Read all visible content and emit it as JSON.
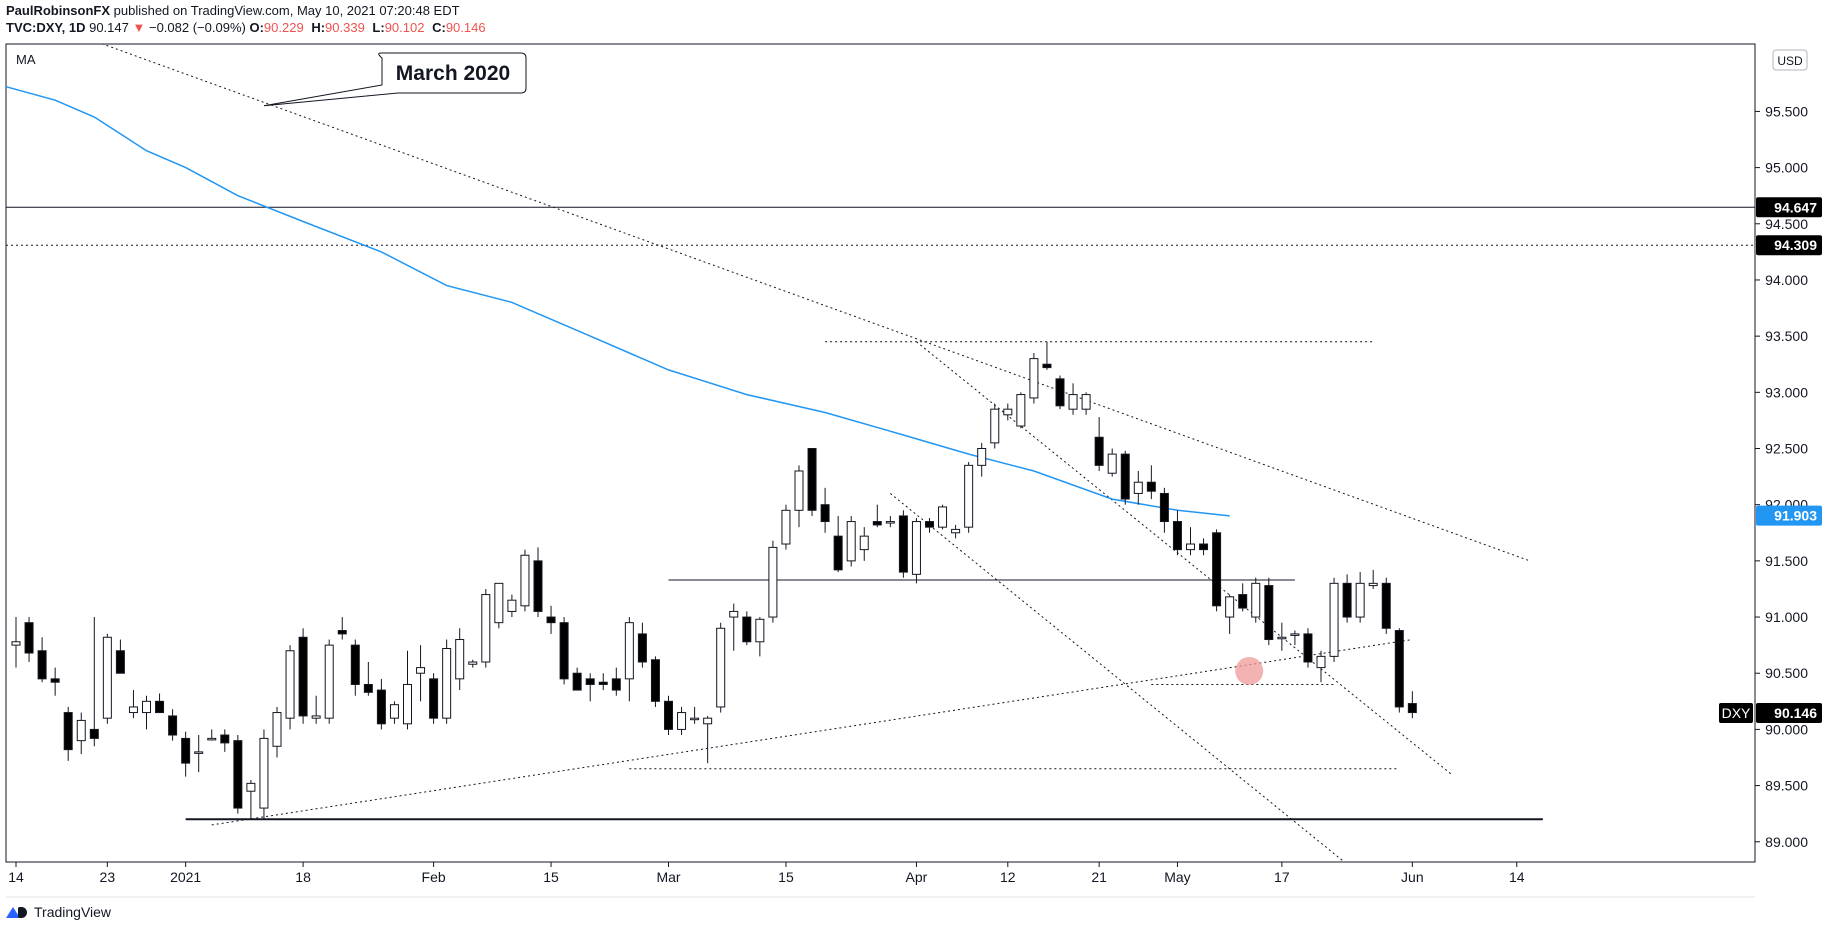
{
  "header": {
    "author": "PaulRobinsonFX",
    "published": "published on TradingView.com, May 10, 2021 07:20:48 EDT",
    "symbol": "TVC:DXY, 1D",
    "last": "90.147",
    "change": "−0.082 (−0.09%)",
    "ohlc": [
      {
        "k": "O:",
        "v": "90.229"
      },
      {
        "k": "H:",
        "v": "90.339"
      },
      {
        "k": "L:",
        "v": "90.102"
      },
      {
        "k": "C:",
        "v": "90.146"
      }
    ]
  },
  "indicator_label": "MA",
  "currency_label": "USD",
  "annotation": "March 2020",
  "footer_brand": "TradingView",
  "colors": {
    "up": "#ffffff",
    "down": "#000000",
    "ma": "#2196f3",
    "circle": "#ef9a9a"
  },
  "chart_data": {
    "type": "candlestick",
    "symbol": "DXY",
    "ylim": [
      88.82,
      96.1
    ],
    "y_ticks": [
      89.0,
      89.5,
      90.0,
      90.5,
      91.0,
      91.5,
      92.0,
      92.5,
      93.0,
      93.5,
      94.0,
      94.5,
      95.0,
      95.5
    ],
    "y_tick_labels": [
      "89.000",
      "89.500",
      "90.000",
      "90.500",
      "91.000",
      "91.500",
      "92.000",
      "92.500",
      "93.000",
      "93.500",
      "94.000",
      "94.500",
      "95.000",
      "95.500"
    ],
    "x_labels": [
      {
        "d": 0,
        "label": "14"
      },
      {
        "d": 7,
        "label": "23"
      },
      {
        "d": 13,
        "label": "2021"
      },
      {
        "d": 22,
        "label": "18"
      },
      {
        "d": 32,
        "label": "Feb"
      },
      {
        "d": 41,
        "label": "15"
      },
      {
        "d": 50,
        "label": "Mar"
      },
      {
        "d": 59,
        "label": "15"
      },
      {
        "d": 69,
        "label": "Apr"
      },
      {
        "d": 76,
        "label": "12"
      },
      {
        "d": 83,
        "label": "21"
      },
      {
        "d": 89,
        "label": "May"
      },
      {
        "d": 97,
        "label": "17"
      },
      {
        "d": 107,
        "label": "Jun"
      },
      {
        "d": 115,
        "label": "14"
      }
    ],
    "candles": [
      {
        "o": 90.75,
        "h": 91.0,
        "l": 90.55,
        "c": 90.78
      },
      {
        "o": 90.95,
        "h": 91.0,
        "l": 90.6,
        "c": 90.68
      },
      {
        "o": 90.7,
        "h": 90.82,
        "l": 90.42,
        "c": 90.45
      },
      {
        "o": 90.45,
        "h": 90.55,
        "l": 90.3,
        "c": 90.42
      },
      {
        "o": 90.15,
        "h": 90.2,
        "l": 89.72,
        "c": 89.82
      },
      {
        "o": 89.9,
        "h": 90.15,
        "l": 89.78,
        "c": 90.08
      },
      {
        "o": 90.0,
        "h": 91.0,
        "l": 89.85,
        "c": 89.92
      },
      {
        "o": 90.1,
        "h": 90.85,
        "l": 90.05,
        "c": 90.82
      },
      {
        "o": 90.7,
        "h": 90.8,
        "l": 90.5,
        "c": 90.5
      },
      {
        "o": 90.15,
        "h": 90.35,
        "l": 90.1,
        "c": 90.2
      },
      {
        "o": 90.15,
        "h": 90.3,
        "l": 90.0,
        "c": 90.25
      },
      {
        "o": 90.25,
        "h": 90.32,
        "l": 90.15,
        "c": 90.15
      },
      {
        "o": 90.12,
        "h": 90.18,
        "l": 89.9,
        "c": 89.95
      },
      {
        "o": 89.92,
        "h": 89.98,
        "l": 89.58,
        "c": 89.7
      },
      {
        "o": 89.8,
        "h": 89.95,
        "l": 89.62,
        "c": 89.8
      },
      {
        "o": 89.92,
        "h": 90.0,
        "l": 89.9,
        "c": 89.92
      },
      {
        "o": 89.95,
        "h": 90.0,
        "l": 89.8,
        "c": 89.88
      },
      {
        "o": 89.9,
        "h": 89.95,
        "l": 89.25,
        "c": 89.3
      },
      {
        "o": 89.45,
        "h": 89.55,
        "l": 89.2,
        "c": 89.52
      },
      {
        "o": 89.3,
        "h": 90.0,
        "l": 89.2,
        "c": 89.92
      },
      {
        "o": 89.85,
        "h": 90.2,
        "l": 89.75,
        "c": 90.15
      },
      {
        "o": 90.1,
        "h": 90.75,
        "l": 90.0,
        "c": 90.7
      },
      {
        "o": 90.82,
        "h": 90.9,
        "l": 90.05,
        "c": 90.12
      },
      {
        "o": 90.1,
        "h": 90.3,
        "l": 90.05,
        "c": 90.12
      },
      {
        "o": 90.1,
        "h": 90.8,
        "l": 90.05,
        "c": 90.75
      },
      {
        "o": 90.88,
        "h": 91.0,
        "l": 90.8,
        "c": 90.85
      },
      {
        "o": 90.75,
        "h": 90.8,
        "l": 90.3,
        "c": 90.4
      },
      {
        "o": 90.4,
        "h": 90.6,
        "l": 90.3,
        "c": 90.33
      },
      {
        "o": 90.35,
        "h": 90.45,
        "l": 90.0,
        "c": 90.05
      },
      {
        "o": 90.1,
        "h": 90.25,
        "l": 90.05,
        "c": 90.22
      },
      {
        "o": 90.05,
        "h": 90.7,
        "l": 90.0,
        "c": 90.4
      },
      {
        "o": 90.5,
        "h": 90.75,
        "l": 90.25,
        "c": 90.55
      },
      {
        "o": 90.45,
        "h": 90.5,
        "l": 90.05,
        "c": 90.1
      },
      {
        "o": 90.1,
        "h": 90.8,
        "l": 90.05,
        "c": 90.72
      },
      {
        "o": 90.45,
        "h": 90.9,
        "l": 90.35,
        "c": 90.8
      },
      {
        "o": 90.58,
        "h": 90.62,
        "l": 90.55,
        "c": 90.6
      },
      {
        "o": 90.6,
        "h": 91.25,
        "l": 90.55,
        "c": 91.2
      },
      {
        "o": 90.95,
        "h": 91.3,
        "l": 90.9,
        "c": 91.3
      },
      {
        "o": 91.05,
        "h": 91.2,
        "l": 91.0,
        "c": 91.15
      },
      {
        "o": 91.1,
        "h": 91.6,
        "l": 91.05,
        "c": 91.55
      },
      {
        "o": 91.5,
        "h": 91.62,
        "l": 91.0,
        "c": 91.05
      },
      {
        "o": 91.0,
        "h": 91.1,
        "l": 90.85,
        "c": 90.95
      },
      {
        "o": 90.95,
        "h": 91.0,
        "l": 90.4,
        "c": 90.45
      },
      {
        "o": 90.5,
        "h": 90.55,
        "l": 90.35,
        "c": 90.35
      },
      {
        "o": 90.45,
        "h": 90.5,
        "l": 90.25,
        "c": 90.4
      },
      {
        "o": 90.42,
        "h": 90.5,
        "l": 90.35,
        "c": 90.4
      },
      {
        "o": 90.45,
        "h": 90.55,
        "l": 90.3,
        "c": 90.35
      },
      {
        "o": 90.45,
        "h": 91.0,
        "l": 90.25,
        "c": 90.95
      },
      {
        "o": 90.85,
        "h": 90.95,
        "l": 90.55,
        "c": 90.6
      },
      {
        "o": 90.62,
        "h": 90.65,
        "l": 90.2,
        "c": 90.25
      },
      {
        "o": 90.25,
        "h": 90.3,
        "l": 89.95,
        "c": 90.0
      },
      {
        "o": 90.0,
        "h": 90.2,
        "l": 89.95,
        "c": 90.15
      },
      {
        "o": 90.1,
        "h": 90.2,
        "l": 90.05,
        "c": 90.1
      },
      {
        "o": 90.05,
        "h": 90.12,
        "l": 89.7,
        "c": 90.1
      },
      {
        "o": 90.2,
        "h": 90.95,
        "l": 90.15,
        "c": 90.9
      },
      {
        "o": 91.0,
        "h": 91.12,
        "l": 90.7,
        "c": 91.05
      },
      {
        "o": 91.0,
        "h": 91.05,
        "l": 90.75,
        "c": 90.78
      },
      {
        "o": 90.78,
        "h": 91.0,
        "l": 90.65,
        "c": 90.98
      },
      {
        "o": 91.0,
        "h": 91.68,
        "l": 90.95,
        "c": 91.62
      },
      {
        "o": 91.65,
        "h": 92.0,
        "l": 91.6,
        "c": 91.95
      },
      {
        "o": 91.95,
        "h": 92.35,
        "l": 91.8,
        "c": 92.3
      },
      {
        "o": 92.5,
        "h": 92.5,
        "l": 91.9,
        "c": 91.95
      },
      {
        "o": 92.0,
        "h": 92.15,
        "l": 91.75,
        "c": 91.85
      },
      {
        "o": 91.72,
        "h": 91.9,
        "l": 91.4,
        "c": 91.42
      },
      {
        "o": 91.5,
        "h": 91.9,
        "l": 91.45,
        "c": 91.85
      },
      {
        "o": 91.6,
        "h": 91.8,
        "l": 91.5,
        "c": 91.72
      },
      {
        "o": 91.85,
        "h": 92.0,
        "l": 91.8,
        "c": 91.82
      },
      {
        "o": 91.85,
        "h": 91.9,
        "l": 91.8,
        "c": 91.85
      },
      {
        "o": 91.9,
        "h": 91.95,
        "l": 91.35,
        "c": 91.4
      },
      {
        "o": 91.38,
        "h": 91.88,
        "l": 91.3,
        "c": 91.85
      },
      {
        "o": 91.85,
        "h": 91.88,
        "l": 91.75,
        "c": 91.8
      },
      {
        "o": 91.8,
        "h": 92.0,
        "l": 91.78,
        "c": 91.98
      },
      {
        "o": 91.75,
        "h": 91.82,
        "l": 91.7,
        "c": 91.78
      },
      {
        "o": 91.8,
        "h": 92.38,
        "l": 91.75,
        "c": 92.35
      },
      {
        "o": 92.35,
        "h": 92.55,
        "l": 92.25,
        "c": 92.5
      },
      {
        "o": 92.55,
        "h": 92.9,
        "l": 92.5,
        "c": 92.85
      },
      {
        "o": 92.8,
        "h": 92.9,
        "l": 92.75,
        "c": 92.85
      },
      {
        "o": 92.7,
        "h": 93.0,
        "l": 92.68,
        "c": 92.98
      },
      {
        "o": 92.95,
        "h": 93.35,
        "l": 92.9,
        "c": 93.3
      },
      {
        "o": 93.25,
        "h": 93.45,
        "l": 93.2,
        "c": 93.22
      },
      {
        "o": 93.12,
        "h": 93.15,
        "l": 92.85,
        "c": 92.88
      },
      {
        "o": 92.85,
        "h": 93.08,
        "l": 92.8,
        "c": 92.98
      },
      {
        "o": 92.85,
        "h": 93.0,
        "l": 92.8,
        "c": 92.98
      },
      {
        "o": 92.6,
        "h": 92.78,
        "l": 92.3,
        "c": 92.35
      },
      {
        "o": 92.28,
        "h": 92.5,
        "l": 92.25,
        "c": 92.45
      },
      {
        "o": 92.45,
        "h": 92.48,
        "l": 92.0,
        "c": 92.05
      },
      {
        "o": 92.1,
        "h": 92.3,
        "l": 92.0,
        "c": 92.2
      },
      {
        "o": 92.2,
        "h": 92.35,
        "l": 92.05,
        "c": 92.12
      },
      {
        "o": 92.1,
        "h": 92.15,
        "l": 91.75,
        "c": 91.85
      },
      {
        "o": 91.85,
        "h": 91.95,
        "l": 91.55,
        "c": 91.6
      },
      {
        "o": 91.6,
        "h": 91.8,
        "l": 91.55,
        "c": 91.65
      },
      {
        "o": 91.65,
        "h": 91.7,
        "l": 91.55,
        "c": 91.6
      },
      {
        "o": 91.75,
        "h": 91.78,
        "l": 91.05,
        "c": 91.1
      },
      {
        "o": 91.0,
        "h": 91.2,
        "l": 90.85,
        "c": 91.18
      },
      {
        "o": 91.2,
        "h": 91.3,
        "l": 91.05,
        "c": 91.08
      },
      {
        "o": 91.0,
        "h": 91.35,
        "l": 90.95,
        "c": 91.3
      },
      {
        "o": 91.28,
        "h": 91.35,
        "l": 90.75,
        "c": 90.8
      },
      {
        "o": 90.82,
        "h": 90.95,
        "l": 90.7,
        "c": 90.82
      },
      {
        "o": 90.85,
        "h": 90.88,
        "l": 90.75,
        "c": 90.85
      },
      {
        "o": 90.85,
        "h": 90.9,
        "l": 90.55,
        "c": 90.6
      },
      {
        "o": 90.55,
        "h": 90.7,
        "l": 90.42,
        "c": 90.65
      },
      {
        "o": 90.65,
        "h": 91.35,
        "l": 90.6,
        "c": 91.3
      },
      {
        "o": 91.3,
        "h": 91.38,
        "l": 90.95,
        "c": 91.0
      },
      {
        "o": 91.0,
        "h": 91.4,
        "l": 90.95,
        "c": 91.3
      },
      {
        "o": 91.28,
        "h": 91.42,
        "l": 91.25,
        "c": 91.3
      },
      {
        "o": 91.3,
        "h": 91.35,
        "l": 90.85,
        "c": 90.9
      },
      {
        "o": 90.88,
        "h": 90.9,
        "l": 90.15,
        "c": 90.2
      },
      {
        "o": 90.23,
        "h": 90.34,
        "l": 90.1,
        "c": 90.15
      }
    ],
    "ma": [
      {
        "d": -1,
        "v": 95.72
      },
      {
        "d": 3,
        "v": 95.6
      },
      {
        "d": 6,
        "v": 95.45
      },
      {
        "d": 10,
        "v": 95.15
      },
      {
        "d": 13,
        "v": 95.0
      },
      {
        "d": 17,
        "v": 94.75
      },
      {
        "d": 22,
        "v": 94.52
      },
      {
        "d": 28,
        "v": 94.25
      },
      {
        "d": 33,
        "v": 93.95
      },
      {
        "d": 38,
        "v": 93.8
      },
      {
        "d": 44,
        "v": 93.5
      },
      {
        "d": 50,
        "v": 93.2
      },
      {
        "d": 56,
        "v": 92.98
      },
      {
        "d": 62,
        "v": 92.82
      },
      {
        "d": 68,
        "v": 92.62
      },
      {
        "d": 73,
        "v": 92.45
      },
      {
        "d": 78,
        "v": 92.3
      },
      {
        "d": 84,
        "v": 92.05
      },
      {
        "d": 89,
        "v": 91.95
      },
      {
        "d": 93,
        "v": 91.9
      }
    ],
    "trendlines": [
      {
        "d1": -10,
        "v1": 96.8,
        "d2": 116,
        "v2": 91.5
      },
      {
        "d1": 69,
        "v1": 93.45,
        "d2": 110,
        "v2": 89.6
      },
      {
        "d1": 67,
        "v1": 92.1,
        "d2": 102,
        "v2": 88.8
      },
      {
        "d1": 15,
        "v1": 89.15,
        "d2": 107,
        "v2": 90.8
      }
    ],
    "hlines": [
      {
        "v": 94.647,
        "style": "solid",
        "label": "94.647"
      },
      {
        "v": 94.309,
        "style": "dotted",
        "label": "94.309"
      }
    ],
    "segments": [
      {
        "d1": 62,
        "d2": 104,
        "v": 93.45,
        "style": "dotted"
      },
      {
        "d1": 50,
        "d2": 98,
        "v": 91.33,
        "style": "solid"
      },
      {
        "d1": 47,
        "d2": 106,
        "v": 89.65,
        "style": "dotted"
      },
      {
        "d1": 87,
        "d2": 101,
        "v": 90.4,
        "style": "dotted"
      },
      {
        "d1": 13,
        "d2": 117,
        "v": 89.2,
        "style": "solid-thick"
      }
    ],
    "ma_label": "91.903",
    "ma_value": 91.903,
    "last_label": "90.146",
    "last_value": 90.146,
    "circle": {
      "d": 94.5,
      "v": 90.52
    },
    "callout_anchor": {
      "d": 19,
      "v": 95.55
    }
  }
}
